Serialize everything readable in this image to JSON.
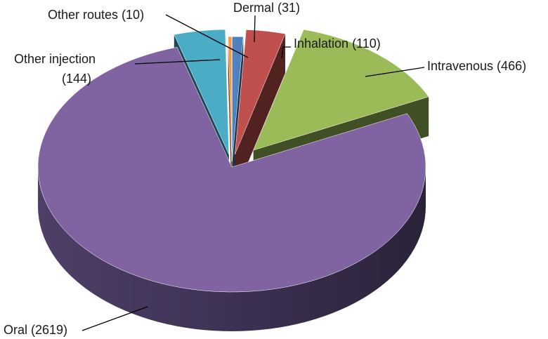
{
  "chart_data": {
    "type": "pie",
    "style": "3d-exploded",
    "title": "",
    "slices": [
      {
        "label": "Dermal",
        "value": 31,
        "display": "Dermal (31)",
        "color": "#4f81bd"
      },
      {
        "label": "Inhalation",
        "value": 110,
        "display": "Inhalation (110)",
        "color": "#c0504d"
      },
      {
        "label": "Intravenous",
        "value": 466,
        "display": "Intravenous (466)",
        "color": "#9bbb59"
      },
      {
        "label": "Oral",
        "value": 2619,
        "display": "Oral (2619)",
        "color": "#8064a2"
      },
      {
        "label": "Other injection",
        "value": 144,
        "display": [
          "Other injection",
          "(144)"
        ],
        "color": "#4bacc6"
      },
      {
        "label": "Other routes",
        "value": 10,
        "display": "Other routes (10)",
        "color": "#f79646"
      }
    ]
  }
}
